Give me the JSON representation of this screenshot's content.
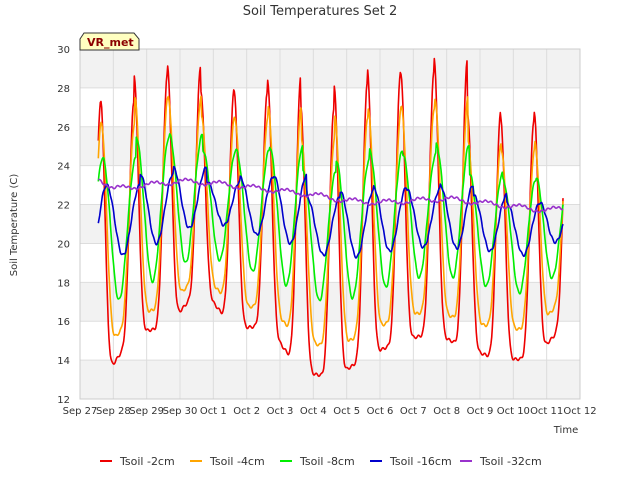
{
  "chart_data": {
    "type": "line",
    "title": "Soil Temperatures Set 2",
    "xlabel": "Time",
    "ylabel": "Soil Temperature (C)",
    "ylim": [
      12,
      30
    ],
    "yticks": [
      12,
      14,
      16,
      18,
      20,
      22,
      24,
      26,
      28,
      30
    ],
    "xlim": [
      0,
      15
    ],
    "xticks": [
      {
        "x": 0,
        "label": "Sep 27"
      },
      {
        "x": 1,
        "label": "Sep 28"
      },
      {
        "x": 2,
        "label": "Sep 29"
      },
      {
        "x": 3,
        "label": "Sep 30"
      },
      {
        "x": 4,
        "label": "Oct 1"
      },
      {
        "x": 5,
        "label": "Oct 2"
      },
      {
        "x": 6,
        "label": "Oct 3"
      },
      {
        "x": 7,
        "label": "Oct 4"
      },
      {
        "x": 8,
        "label": "Oct 5"
      },
      {
        "x": 9,
        "label": "Oct 6"
      },
      {
        "x": 10,
        "label": "Oct 7"
      },
      {
        "x": 11,
        "label": "Oct 8"
      },
      {
        "x": 12,
        "label": "Oct 9"
      },
      {
        "x": 13,
        "label": "Oct 10"
      },
      {
        "x": 14,
        "label": "Oct 11"
      },
      {
        "x": 15,
        "label": "Oct 12"
      }
    ],
    "grid": true,
    "legend_position": "bottom",
    "badge": "VR_met",
    "x_start": 0.55,
    "x_end": 14.5,
    "series": [
      {
        "name": "Tsoil -2cm",
        "color": "#ee0000",
        "phase": 0.62,
        "sharp": 3,
        "peaks": [
          27.3,
          28.7,
          29.1,
          27.9,
          27.8,
          28.5,
          27.0,
          28.2,
          28.9,
          28.8,
          29.5,
          26.7,
          26.4,
          26.8
        ],
        "troughs": [
          12.8,
          15.4,
          15.7,
          17.8,
          15.6,
          15.8,
          13.4,
          13.1,
          14.2,
          15.0,
          15.4,
          14.6,
          14.0,
          14.1,
          16.0
        ]
      },
      {
        "name": "Tsoil -4cm",
        "color": "#ffa500",
        "phase": 0.64,
        "sharp": 2,
        "peaks": [
          26.2,
          27.5,
          27.6,
          26.5,
          26.5,
          27.0,
          25.4,
          26.5,
          27.0,
          27.0,
          27.5,
          25.2,
          24.8,
          25.2
        ],
        "troughs": [
          14.4,
          16.3,
          16.8,
          18.5,
          16.7,
          16.8,
          15.0,
          14.6,
          15.5,
          16.2,
          16.6,
          15.9,
          15.7,
          15.5,
          17.5
        ]
      },
      {
        "name": "Tsoil -8cm",
        "color": "#00ee00",
        "phase": 0.68,
        "sharp": 1,
        "peaks": [
          24.4,
          25.5,
          25.6,
          24.8,
          24.8,
          25.0,
          23.7,
          24.3,
          24.8,
          24.6,
          25.1,
          23.6,
          23.3,
          23.4
        ],
        "troughs": [
          16.4,
          17.8,
          18.3,
          19.7,
          18.6,
          18.5,
          17.2,
          16.9,
          17.5,
          18.0,
          18.5,
          18.0,
          17.6,
          17.3,
          19.2
        ]
      },
      {
        "name": "Tsoil -16cm",
        "color": "#0000cc",
        "phase": 0.8,
        "sharp": 1,
        "peaks": [
          23.0,
          23.6,
          23.9,
          23.2,
          23.4,
          23.5,
          22.4,
          22.7,
          22.9,
          22.8,
          23.0,
          22.5,
          22.1,
          22.1
        ],
        "troughs": [
          19.0,
          19.8,
          20.2,
          21.4,
          20.5,
          20.4,
          19.6,
          19.2,
          19.4,
          19.8,
          19.8,
          19.7,
          19.5,
          19.3,
          20.9
        ]
      },
      {
        "name": "Tsoil -32cm",
        "color": "#9932cc",
        "phase": 0.0,
        "sharp": 1,
        "trend": [
          [
            0.55,
            23.4
          ],
          [
            1.0,
            22.8
          ],
          [
            2.0,
            23.0
          ],
          [
            3.0,
            23.2
          ],
          [
            4.0,
            23.1
          ],
          [
            5.0,
            22.9
          ],
          [
            6.0,
            22.7
          ],
          [
            7.0,
            22.5
          ],
          [
            8.0,
            22.2
          ],
          [
            9.0,
            22.1
          ],
          [
            10.0,
            22.2
          ],
          [
            11.0,
            22.3
          ],
          [
            12.0,
            22.1
          ],
          [
            13.0,
            21.9
          ],
          [
            14.0,
            21.7
          ],
          [
            14.5,
            21.8
          ]
        ]
      }
    ]
  }
}
